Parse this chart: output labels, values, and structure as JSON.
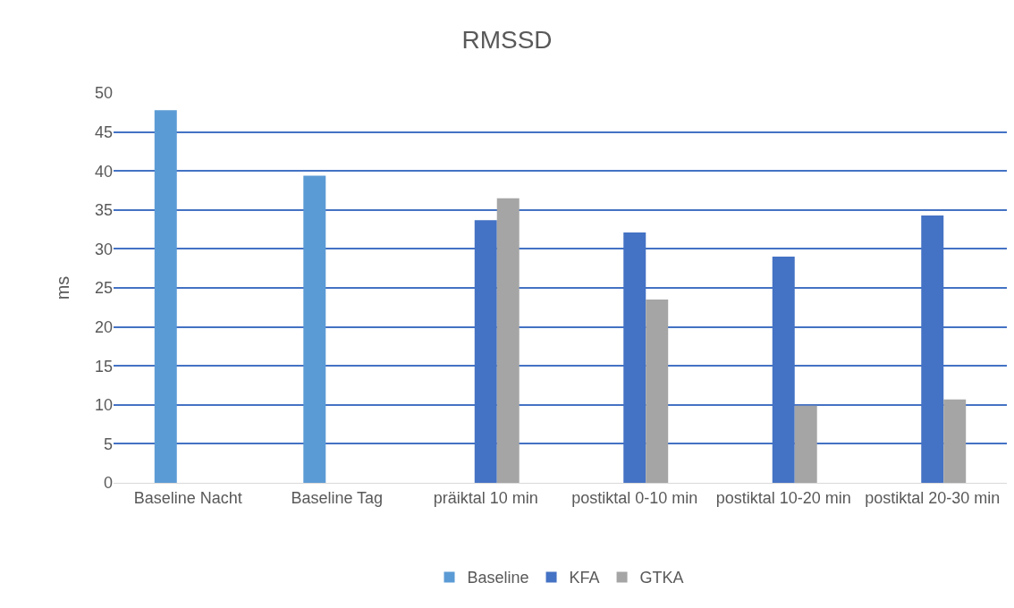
{
  "chart_data": {
    "type": "bar",
    "title": "RMSSD",
    "ylabel": "ms",
    "categories": [
      "Baseline Nacht",
      "Baseline Tag",
      "präiktal 10 min",
      "postiktal 0-10 min",
      "postiktal 10-20 min",
      "postiktal 20-30 min"
    ],
    "series": [
      {
        "name": "Baseline",
        "color": "#5b9bd5",
        "values": [
          47.8,
          39.4,
          null,
          null,
          null,
          null
        ]
      },
      {
        "name": "KFA",
        "color": "#4472c4",
        "values": [
          null,
          null,
          33.7,
          32.1,
          29.0,
          34.3
        ]
      },
      {
        "name": "GTKA",
        "color": "#a5a5a5",
        "values": [
          null,
          null,
          36.5,
          23.5,
          9.9,
          10.7
        ]
      }
    ],
    "ylim": [
      0,
      50
    ],
    "yticks": [
      0,
      5,
      10,
      15,
      20,
      25,
      30,
      35,
      40,
      45,
      50
    ],
    "grid": "y",
    "legend": "bottom"
  }
}
